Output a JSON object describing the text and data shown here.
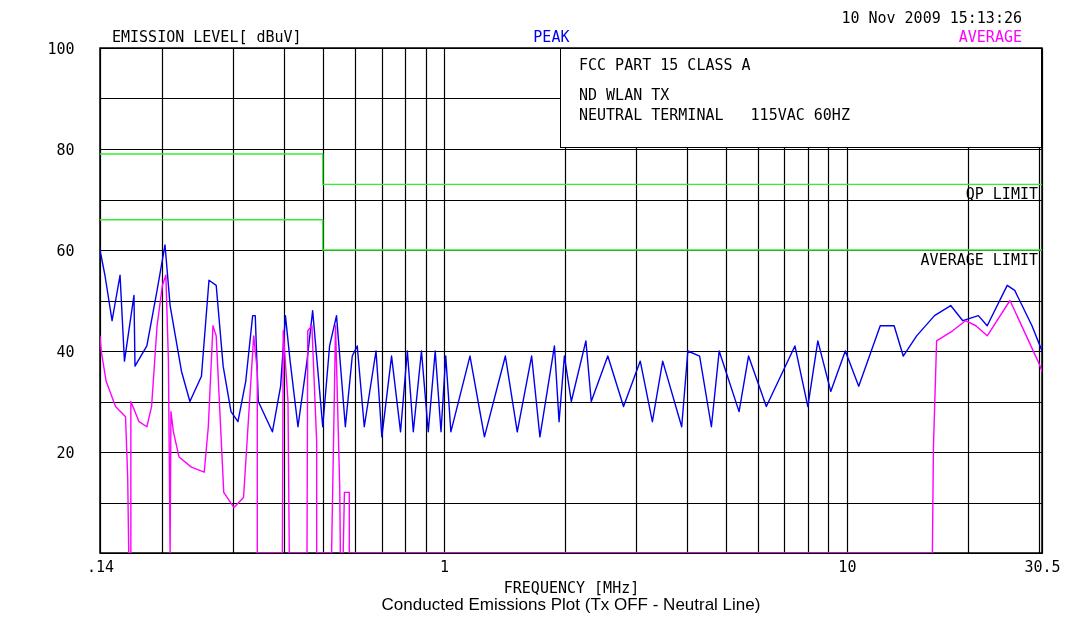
{
  "chart_data": {
    "type": "line",
    "title": "Conducted Emissions Plot (Tx OFF - Neutral Line)",
    "xlabel": "FREQUENCY [MHz]",
    "ylabel": "EMISSION LEVEL[ dBuV]",
    "log": "x",
    "grid": true,
    "legend": "top",
    "xlim": [
      0.14,
      30.5
    ],
    "ylim": [
      0,
      100
    ],
    "xticks": [
      {
        "value": 0.14,
        "label": ".14"
      },
      {
        "value": 0.2,
        "label": null
      },
      {
        "value": 0.3,
        "label": null
      },
      {
        "value": 0.4,
        "label": null
      },
      {
        "value": 0.5,
        "label": null
      },
      {
        "value": 0.6,
        "label": null
      },
      {
        "value": 0.7,
        "label": null
      },
      {
        "value": 0.8,
        "label": null
      },
      {
        "value": 0.9,
        "label": null
      },
      1,
      {
        "value": 2,
        "label": null
      },
      {
        "value": 3,
        "label": null
      },
      {
        "value": 4,
        "label": null
      },
      {
        "value": 5,
        "label": null
      },
      {
        "value": 6,
        "label": null
      },
      {
        "value": 7,
        "label": null
      },
      {
        "value": 8,
        "label": null
      },
      {
        "value": 9,
        "label": null
      },
      10,
      {
        "value": 20,
        "label": null
      },
      {
        "value": 30,
        "label": null
      },
      30.5
    ],
    "yticks": [
      {
        "value": 0,
        "label": null
      },
      {
        "value": 10,
        "label": null
      },
      20,
      {
        "value": 30,
        "label": null
      },
      40,
      {
        "value": 50,
        "label": null
      },
      60,
      {
        "value": 70,
        "label": null
      },
      80,
      {
        "value": 90,
        "label": null
      },
      100
    ],
    "annotations": [
      "10 Nov 2009   15:13:26",
      "FCC PART 15 CLASS A",
      "ND WLAN TX",
      "NEUTRAL TERMINAL   115VAC 60HZ"
    ],
    "series": [
      {
        "name": "PEAK",
        "color": "#0000ee",
        "x": [
          0.14,
          0.144,
          0.15,
          0.157,
          0.161,
          0.17,
          0.171,
          0.183,
          0.194,
          0.203,
          0.209,
          0.223,
          0.234,
          0.25,
          0.261,
          0.272,
          0.283,
          0.296,
          0.308,
          0.322,
          0.335,
          0.34,
          0.346,
          0.375,
          0.393,
          0.404,
          0.415,
          0.434,
          0.457,
          0.472,
          0.5,
          0.52,
          0.541,
          0.569,
          0.592,
          0.609,
          0.634,
          0.678,
          0.701,
          0.741,
          0.78,
          0.811,
          0.839,
          0.879,
          0.914,
          0.951,
          0.983,
          1.01,
          1.04,
          1.16,
          1.26,
          1.42,
          1.52,
          1.65,
          1.73,
          1.88,
          1.93,
          1.99,
          2.07,
          2.25,
          2.32,
          2.55,
          2.79,
          3.07,
          3.29,
          3.49,
          3.89,
          4.03,
          4.31,
          4.61,
          4.82,
          5.4,
          5.7,
          6.31,
          7.43,
          8.0,
          8.47,
          9.12,
          9.91,
          10.7,
          12.1,
          13.1,
          13.8,
          14.9,
          16.5,
          18.1,
          19.4,
          21.2,
          22.3,
          25.0,
          26.1,
          28.8,
          30.5
        ],
        "values": [
          60,
          55,
          46,
          55,
          38,
          51,
          37,
          41,
          52,
          61,
          49,
          36,
          30,
          35,
          54,
          53,
          37,
          28,
          26,
          34,
          47,
          47,
          30,
          24,
          33,
          47,
          38,
          25,
          38,
          48,
          25,
          41,
          47,
          25,
          39,
          41,
          25,
          40,
          23,
          39,
          24,
          40,
          24,
          40,
          24,
          40,
          24,
          39,
          24,
          39,
          23,
          39,
          24,
          39,
          23,
          41,
          26,
          39,
          30,
          42,
          30,
          39,
          29,
          38,
          26,
          38,
          25,
          40,
          39,
          25,
          40,
          28,
          39,
          29,
          41,
          29,
          42,
          32,
          40,
          33,
          45,
          45,
          39,
          43,
          47,
          49,
          46,
          47,
          45,
          53,
          52,
          45,
          40
        ]
      },
      {
        "name": "AVERAGE",
        "color": "#ff00ff",
        "x": [
          0.14,
          0.141,
          0.145,
          0.153,
          0.162,
          0.164,
          0.165,
          0.167,
          0.167,
          0.175,
          0.183,
          0.188,
          0.194,
          0.2,
          0.204,
          0.207,
          0.209,
          0.21,
          0.213,
          0.22,
          0.236,
          0.254,
          0.26,
          0.267,
          0.272,
          0.284,
          0.301,
          0.318,
          0.337,
          0.344,
          0.344,
          0.397,
          0.399,
          0.41,
          0.413,
          0.457,
          0.459,
          0.47,
          0.483,
          0.483,
          0.526,
          0.538,
          0.551,
          0.553,
          0.562,
          0.566,
          0.582,
          0.582,
          16.3,
          16.4,
          16.7,
          18.3,
          19.7,
          20.9,
          22.3,
          25.4,
          29.8,
          30.5
        ],
        "values": [
          43,
          40,
          34,
          29,
          27,
          15,
          0,
          0,
          30,
          26,
          25,
          29,
          45,
          53,
          55,
          38,
          0,
          28,
          24,
          19,
          17,
          16,
          25,
          45,
          43,
          12,
          9,
          11,
          43,
          36,
          0,
          0,
          44,
          30,
          0,
          0,
          44,
          45,
          22,
          0,
          0,
          45,
          13,
          0,
          0,
          12,
          12,
          0,
          0,
          21,
          42,
          44,
          46,
          45,
          43,
          50,
          38,
          36
        ]
      },
      {
        "name": "QP LIMIT",
        "type": "step",
        "color": "#33ee33",
        "x": [
          0.14,
          0.5,
          30.5
        ],
        "values": [
          79,
          73,
          73
        ]
      },
      {
        "name": "AVERAGE LIMIT",
        "type": "step",
        "color": "#33ee33",
        "x": [
          0.14,
          0.5,
          30.5
        ],
        "values": [
          66,
          60,
          60
        ]
      }
    ]
  }
}
